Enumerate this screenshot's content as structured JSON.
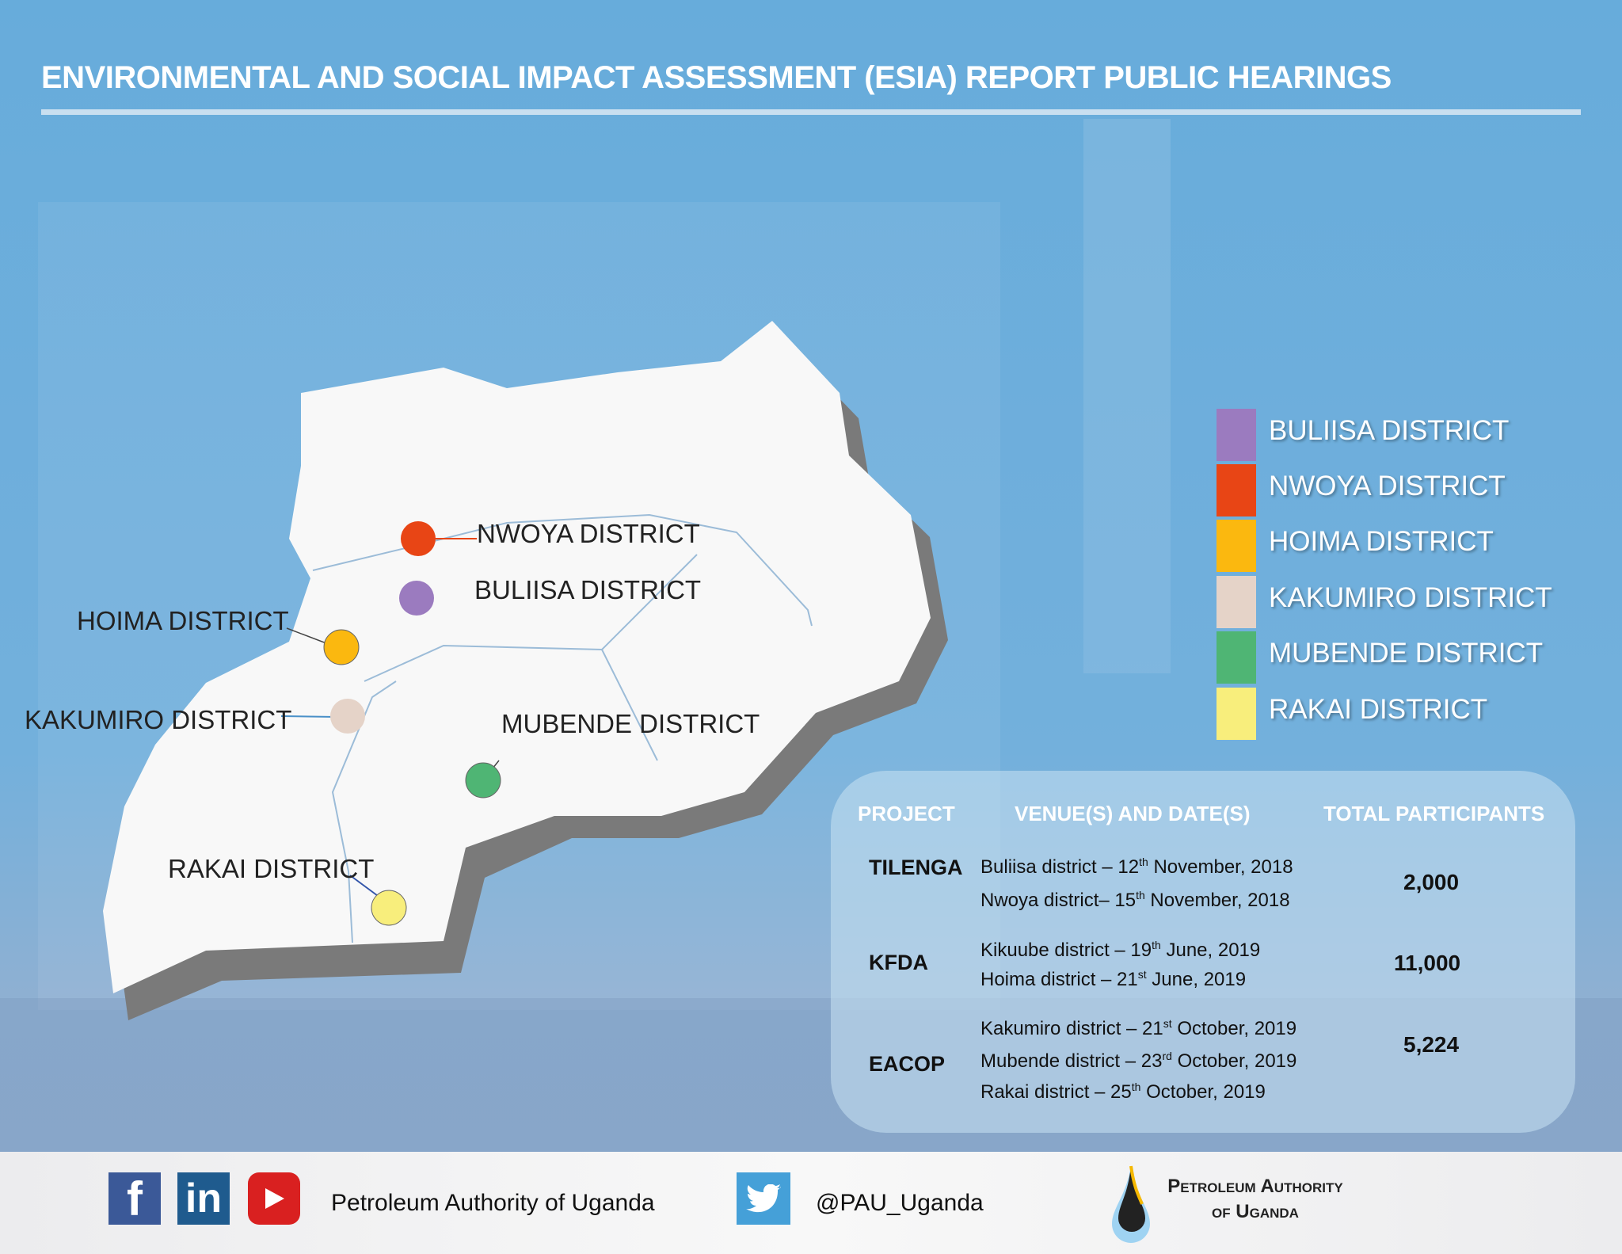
{
  "title": "ENVIRONMENTAL AND SOCIAL IMPACT ASSESSMENT (ESIA) REPORT PUBLIC HEARINGS",
  "map_labels": {
    "nwoya": "NWOYA DISTRICT",
    "buliisa": "BULIISA DISTRICT",
    "hoima": "HOIMA DISTRICT",
    "kakumiro": "KAKUMIRO DISTRICT",
    "mubende": "MUBENDE DISTRICT",
    "rakai": "RAKAI DISTRICT"
  },
  "legend": [
    {
      "label": "BULIISA DISTRICT",
      "color": "#9b7bbf"
    },
    {
      "label": "NWOYA DISTRICT",
      "color": "#e84515"
    },
    {
      "label": "HOIMA DISTRICT",
      "color": "#fbb80f"
    },
    {
      "label": "KAKUMIRO DISTRICT",
      "color": "#e5d3c8"
    },
    {
      "label": "MUBENDE DISTRICT",
      "color": "#4fb574"
    },
    {
      "label": "RAKAI DISTRICT",
      "color": "#f8ee7c"
    }
  ],
  "table": {
    "headers": [
      "PROJECT",
      "VENUE(S) AND DATE(S)",
      "TOTAL PARTICIPANTS"
    ],
    "rows": [
      {
        "project": "TILENGA",
        "total": "2,000",
        "venues": [
          [
            "Buliisa district – 12",
            "th",
            " November, 2018"
          ],
          [
            "Nwoya district– 15",
            "th",
            " November, 2018"
          ]
        ]
      },
      {
        "project": "KFDA",
        "total": "11,000",
        "venues": [
          [
            "Kikuube district – 19",
            "th",
            " June, 2019"
          ],
          [
            "Hoima district – 21",
            "st",
            " June, 2019"
          ]
        ]
      },
      {
        "project": "EACOP",
        "total": "5,224",
        "venues": [
          [
            "Kakumiro district – 21",
            "st",
            " October, 2019"
          ],
          [
            "Mubende district – 23",
            "rd",
            " October, 2019"
          ],
          [
            "Rakai district – 25",
            "th",
            " October, 2019"
          ]
        ]
      }
    ]
  },
  "footer": {
    "org_name": "Petroleum Authority of Uganda",
    "twitter_handle": "@PAU_Uganda",
    "logo_text": "Petroleum Authority of Uganda",
    "icons": [
      "facebook-icon",
      "linkedin-icon",
      "youtube-icon",
      "twitter-icon"
    ],
    "fb": "f",
    "li": "in"
  }
}
